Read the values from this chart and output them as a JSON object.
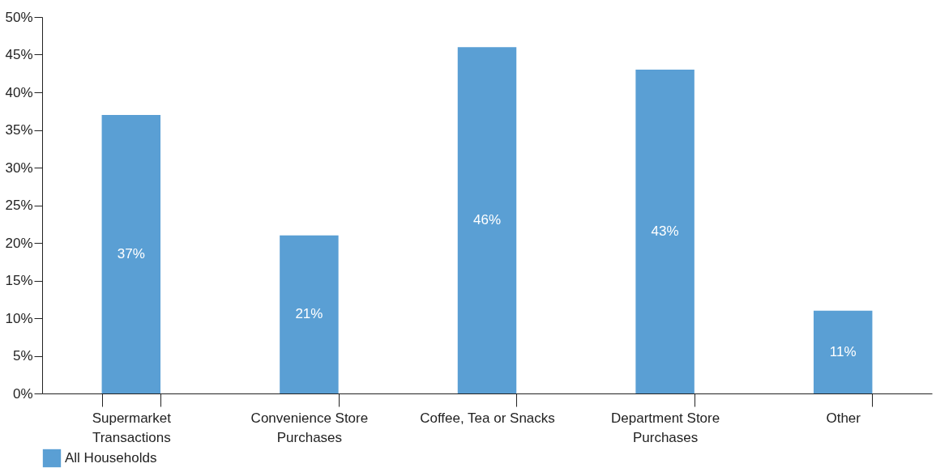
{
  "chart_data": {
    "type": "bar",
    "categories": [
      "Supermarket Transactions",
      "Convenience Store Purchases",
      "Coffee, Tea or Snacks",
      "Department Store Purchases",
      "Other"
    ],
    "series": [
      {
        "name": "All Households",
        "color": "#5a9fd4",
        "values": [
          37,
          21,
          46,
          43,
          11
        ],
        "value_labels": [
          "37%",
          "21%",
          "46%",
          "43%",
          "11%"
        ]
      }
    ],
    "ylim": [
      0,
      50
    ],
    "yticks": [
      {
        "value": 0,
        "label": "0%"
      },
      {
        "value": 5,
        "label": "5%"
      },
      {
        "value": 10,
        "label": "10%"
      },
      {
        "value": 15,
        "label": "15%"
      },
      {
        "value": 20,
        "label": "20%"
      },
      {
        "value": 25,
        "label": "25%"
      },
      {
        "value": 30,
        "label": "30%"
      },
      {
        "value": 35,
        "label": "35%"
      },
      {
        "value": 40,
        "label": "40%"
      },
      {
        "value": 45,
        "label": "45%"
      },
      {
        "value": 50,
        "label": "50%"
      }
    ],
    "grid": false,
    "legend": "bottom"
  }
}
